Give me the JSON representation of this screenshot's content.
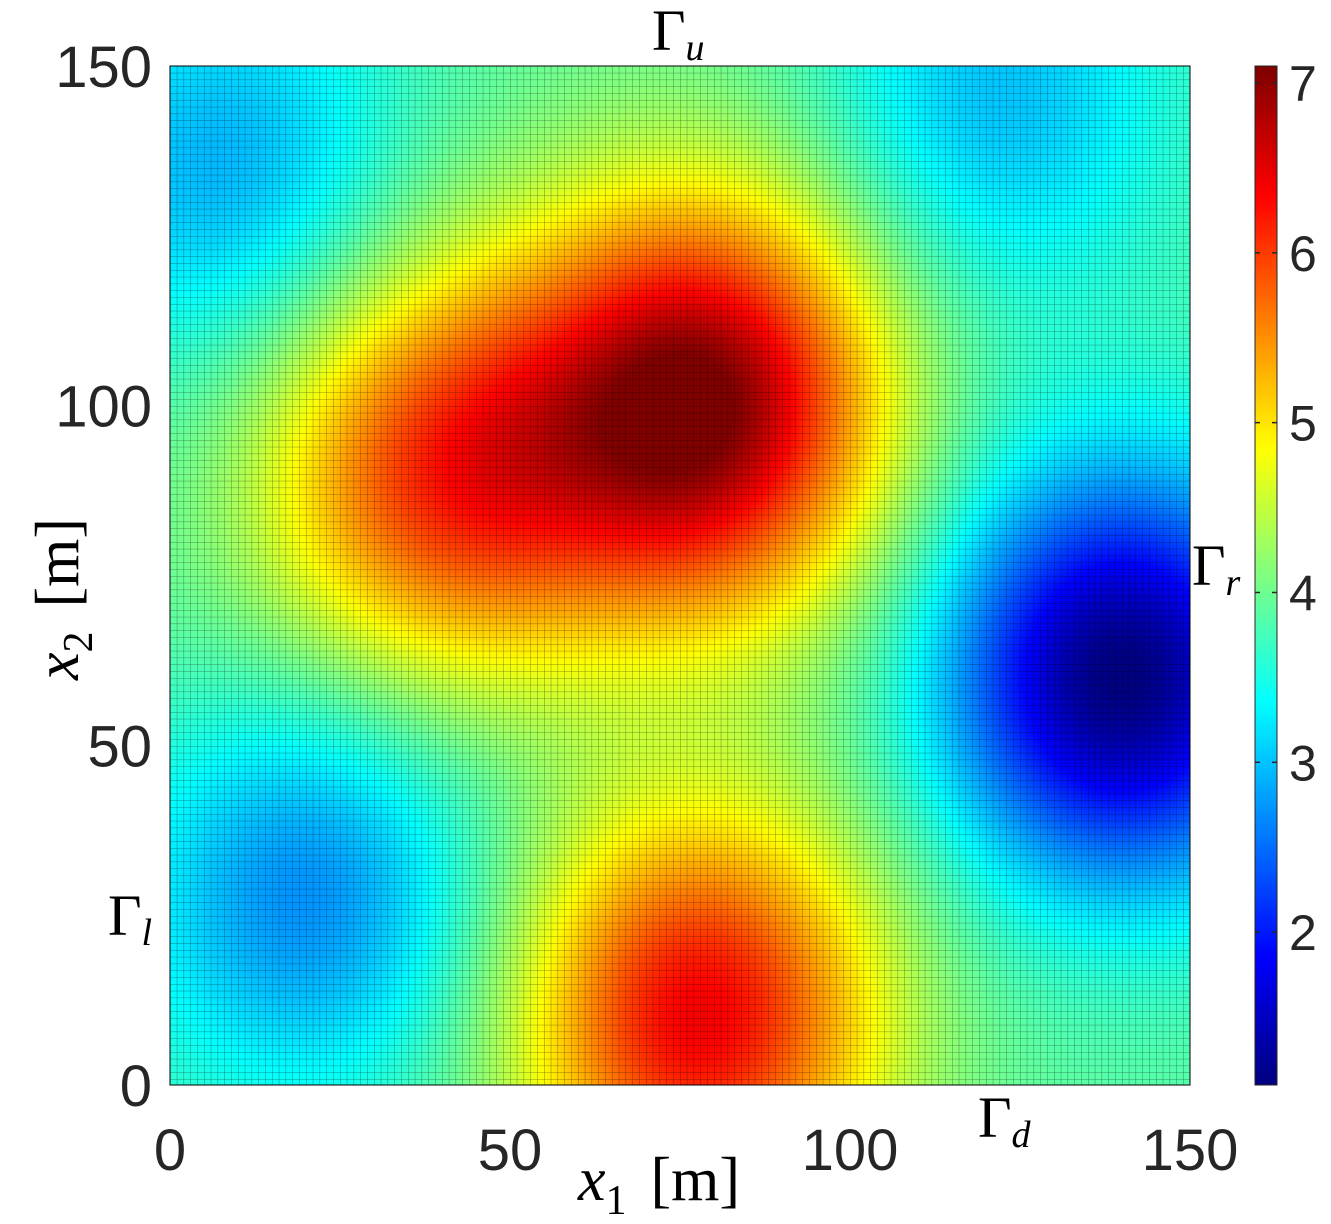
{
  "chart_data": {
    "type": "heatmap",
    "title": "",
    "xlabel": {
      "var": "x",
      "sub": "1",
      "unit": "[m]"
    },
    "ylabel": {
      "var": "x",
      "sub": "2",
      "unit": "[m]"
    },
    "xlim": [
      0,
      150
    ],
    "ylim": [
      0,
      150
    ],
    "x_ticks": [
      "0",
      "50",
      "100",
      "150"
    ],
    "y_ticks": [
      "0",
      "50",
      "100",
      "150"
    ],
    "grid": "cell edges drawn (fine mesh, ~150 x 150 cells)",
    "colormap": "jet",
    "colorbar": {
      "range": [
        1.1,
        7.1
      ],
      "ticks": [
        "2",
        "3",
        "4",
        "5",
        "6",
        "7"
      ]
    },
    "field_features": [
      {
        "kind": "max",
        "x": 78,
        "y": 100,
        "value": 7.1
      },
      {
        "kind": "max",
        "x": 78,
        "y": 10,
        "value": 6.4
      },
      {
        "kind": "max",
        "x": 40,
        "y": 90,
        "value": 6.0
      },
      {
        "kind": "min",
        "x": 140,
        "y": 60,
        "value": 1.1
      },
      {
        "kind": "min",
        "x": 20,
        "y": 28,
        "value": 2.7
      },
      {
        "kind": "min",
        "x": 8,
        "y": 135,
        "value": 2.9
      },
      {
        "kind": "min",
        "x": 122,
        "y": 145,
        "value": 3.0
      }
    ],
    "boundary_labels": {
      "upper": {
        "base": "Γ",
        "sub": "u"
      },
      "lower": {
        "base": "Γ",
        "sub": "d"
      },
      "left": {
        "base": "Γ",
        "sub": "l"
      },
      "right": {
        "base": "Γ",
        "sub": "r"
      }
    }
  },
  "colors": {
    "axis_text": "#262626",
    "grid_line": "#000000"
  }
}
